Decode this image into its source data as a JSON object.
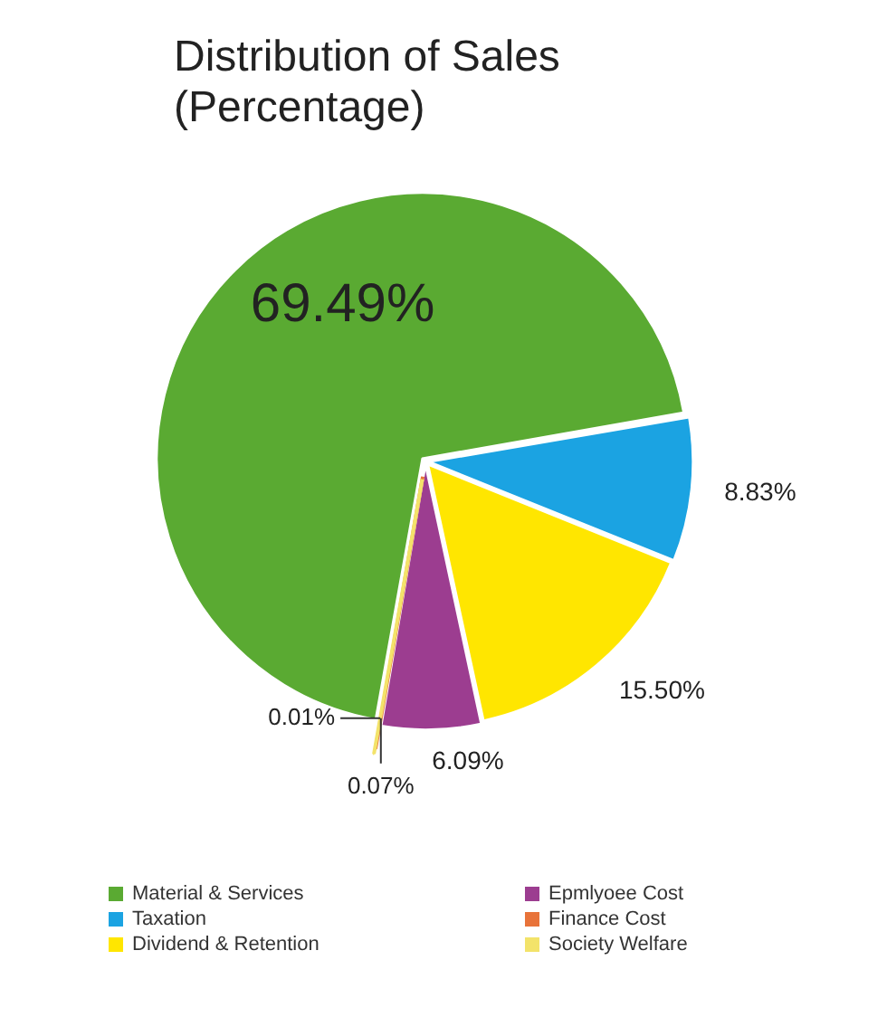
{
  "chart_data": {
    "type": "pie",
    "title": "Distribution of Sales\n(Percentage)",
    "categories": [
      "Material & Services",
      "Taxation",
      "Dividend & Retention",
      "Epmlyoee Cost",
      "Finance Cost",
      "Society Welfare"
    ],
    "values": [
      69.49,
      8.83,
      15.5,
      6.09,
      0.07,
      0.01
    ],
    "colors": [
      "#5aaa32",
      "#1ba3e2",
      "#ffe600",
      "#9c3d90",
      "#e8733a",
      "#f3e36a"
    ],
    "value_labels": [
      "69.49%",
      "8.83%",
      "15.50%",
      "6.09%",
      "0.07%",
      "0.01%"
    ],
    "legend": "bottom"
  }
}
